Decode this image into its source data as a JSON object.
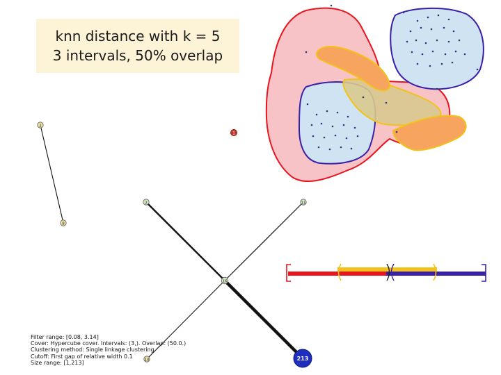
{
  "title": {
    "line1": "knn distance with k = 5",
    "line2": "3 intervals, 50% overlap"
  },
  "graph": {
    "nodes": [
      {
        "id": "n-tl",
        "label": "2"
      },
      {
        "id": "n-tl-low",
        "label": "8"
      },
      {
        "id": "n-mid-left",
        "label": "2"
      },
      {
        "id": "n-mid-right",
        "label": "11"
      },
      {
        "id": "n-center",
        "label": "16"
      },
      {
        "id": "n-bottom-left",
        "label": "10"
      },
      {
        "id": "n-small-red",
        "label": "1"
      },
      {
        "id": "n-big-blue",
        "label": "213"
      }
    ]
  },
  "info_text": [
    "Filter range: [0.08, 3.14]",
    "Cover: Hypercube cover. Intervals: (3,). Overlap: (50.0.)",
    "Clustering method: Single linkage clustering",
    "Cutoff: First gap of relative width 0.1",
    "Size range: [1,213]"
  ],
  "interval_bar": {
    "segments": [
      "red",
      "yellow",
      "blue"
    ],
    "brackets": [
      "[",
      "(",
      ")",
      "(",
      ")",
      "]"
    ]
  },
  "colors": {
    "red": "#e8141e",
    "yellow": "#f2c21b",
    "blue": "#3a1fa8",
    "light_red_fill": "#f7b9bd",
    "light_blue_fill": "#cfe3f3",
    "orange_fill": "#f7a45e",
    "olive_fill": "#d8c98e",
    "node_blue": "#1e2fbf",
    "node_green": "#d7e8c6",
    "node_yellow": "#efe3a8"
  }
}
